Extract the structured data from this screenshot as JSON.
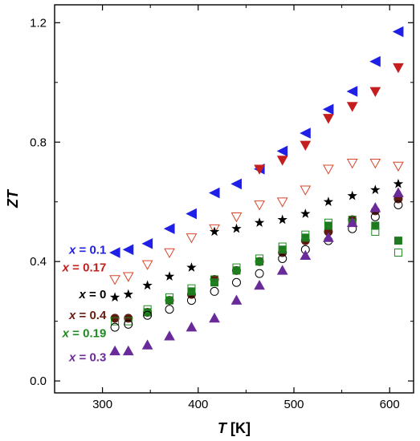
{
  "chart_data": {
    "type": "scatter",
    "title": "",
    "xlabel": "T [K]",
    "xlabel_parts": {
      "italic": "T",
      "rest": " [K]"
    },
    "ylabel": "ZT",
    "xlim": [
      250,
      625
    ],
    "ylim": [
      -0.04,
      1.26
    ],
    "x_ticks": [
      300,
      400,
      500,
      600
    ],
    "x_tick_labels": [
      "300",
      "400",
      "500",
      "600"
    ],
    "y_ticks": [
      0.0,
      0.4,
      0.8,
      1.2
    ],
    "y_tick_labels": [
      "0.0",
      "0.4",
      "0.8",
      "1.2"
    ],
    "grid": false,
    "legend_placement": "left",
    "series": [
      {
        "name": "x = 0.1",
        "x_label": "x",
        "value_label": " = 0.1",
        "marker": "triangle-left",
        "fill": "#1f1fe6",
        "stroke": "#1f1fe6",
        "label_color": "#1f1fe6",
        "x": [
          313,
          327,
          347,
          370,
          393,
          417,
          440,
          464,
          488,
          512,
          536,
          561,
          585,
          609
        ],
        "y": [
          0.43,
          0.44,
          0.46,
          0.51,
          0.56,
          0.63,
          0.66,
          0.71,
          0.77,
          0.83,
          0.91,
          0.97,
          1.07,
          1.17
        ]
      },
      {
        "name": "x = 0.17 (filled)",
        "x_label": "",
        "value_label": "",
        "marker": "triangle-down",
        "fill": "#c41e1e",
        "stroke": "#c41e1e",
        "label_color": "#c41e1e",
        "x": [
          464,
          488,
          512,
          536,
          561,
          585,
          609
        ],
        "y": [
          0.71,
          0.74,
          0.79,
          0.88,
          0.92,
          0.97,
          1.05
        ]
      },
      {
        "name": "x = 0.17",
        "x_label": "x",
        "value_label": " = 0.17",
        "marker": "triangle-down-open",
        "fill": "none",
        "stroke": "#d9442a",
        "label_color": "#c41e1e",
        "x": [
          313,
          327,
          347,
          370,
          393,
          417,
          440,
          464,
          488,
          512,
          536,
          561,
          585,
          609
        ],
        "y": [
          0.34,
          0.35,
          0.39,
          0.43,
          0.48,
          0.51,
          0.55,
          0.59,
          0.6,
          0.64,
          0.71,
          0.73,
          0.73,
          0.72
        ]
      },
      {
        "name": "x = 0",
        "x_label": "x",
        "value_label": " = 0",
        "marker": "star",
        "fill": "#000000",
        "stroke": "#000000",
        "label_color": "#000000",
        "x": [
          313,
          327,
          347,
          370,
          393,
          417,
          440,
          464,
          488,
          512,
          536,
          561,
          585,
          609
        ],
        "y": [
          0.28,
          0.29,
          0.32,
          0.35,
          0.38,
          0.5,
          0.51,
          0.53,
          0.54,
          0.56,
          0.6,
          0.62,
          0.64,
          0.66
        ]
      },
      {
        "name": "x = 0.4",
        "x_label": "x",
        "value_label": " = 0.4",
        "marker": "circle",
        "fill": "#5c1a10",
        "stroke": "#5c1a10",
        "label_color": "#6b1a0e",
        "x": [
          313,
          327,
          347,
          370,
          393,
          417,
          440,
          464,
          488,
          512,
          536,
          561,
          585,
          609
        ],
        "y": [
          0.21,
          0.21,
          0.23,
          0.27,
          0.29,
          0.34,
          0.37,
          0.4,
          0.43,
          0.47,
          0.5,
          0.54,
          0.57,
          0.61
        ]
      },
      {
        "name": "x = 0.19 (filled)",
        "x_label": "",
        "value_label": "",
        "marker": "square",
        "fill": "#1f7a1f",
        "stroke": "#1f7a1f",
        "label_color": "#1f8a1f",
        "x": [
          347,
          370,
          393,
          417,
          440,
          464,
          488,
          512,
          536,
          561,
          585,
          609
        ],
        "y": [
          0.23,
          0.27,
          0.3,
          0.33,
          0.37,
          0.4,
          0.44,
          0.48,
          0.52,
          0.53,
          0.52,
          0.47
        ]
      },
      {
        "name": "x = 0.19",
        "x_label": "x",
        "value_label": " = 0.19",
        "marker": "square-open",
        "fill": "none",
        "stroke": "#1f8a1f",
        "label_color": "#1f8a1f",
        "x": [
          313,
          327,
          347,
          370,
          393,
          417,
          440,
          464,
          488,
          512,
          536,
          561,
          585,
          609
        ],
        "y": [
          0.2,
          0.2,
          0.24,
          0.28,
          0.31,
          0.34,
          0.38,
          0.41,
          0.45,
          0.49,
          0.53,
          0.54,
          0.5,
          0.43
        ]
      },
      {
        "name": "open circles",
        "x_label": "",
        "value_label": "",
        "marker": "circle-open",
        "fill": "none",
        "stroke": "#000000",
        "label_color": "#000000",
        "x": [
          313,
          327,
          347,
          370,
          393,
          417,
          440,
          464,
          488,
          512,
          536,
          561,
          585,
          609
        ],
        "y": [
          0.18,
          0.19,
          0.22,
          0.24,
          0.27,
          0.3,
          0.33,
          0.36,
          0.41,
          0.44,
          0.47,
          0.51,
          0.55,
          0.59
        ]
      },
      {
        "name": "x = 0.3",
        "x_label": "x",
        "value_label": " = 0.3",
        "marker": "triangle-up",
        "fill": "#6a2a9a",
        "stroke": "#6a2a9a",
        "label_color": "#6a2a9a",
        "x": [
          313,
          327,
          347,
          370,
          393,
          417,
          440,
          464,
          488,
          512,
          536,
          561,
          585,
          609
        ],
        "y": [
          0.1,
          0.1,
          0.12,
          0.15,
          0.18,
          0.21,
          0.27,
          0.32,
          0.37,
          0.42,
          0.48,
          0.53,
          0.58,
          0.63
        ]
      }
    ],
    "legend": [
      {
        "series_index": 0,
        "y_value": 0.44
      },
      {
        "series_index": 2,
        "y_value": 0.38
      },
      {
        "series_index": 3,
        "y_value": 0.29
      },
      {
        "series_index": 4,
        "y_value": 0.22
      },
      {
        "series_index": 6,
        "y_value": 0.16
      },
      {
        "series_index": 8,
        "y_value": 0.08
      }
    ]
  }
}
